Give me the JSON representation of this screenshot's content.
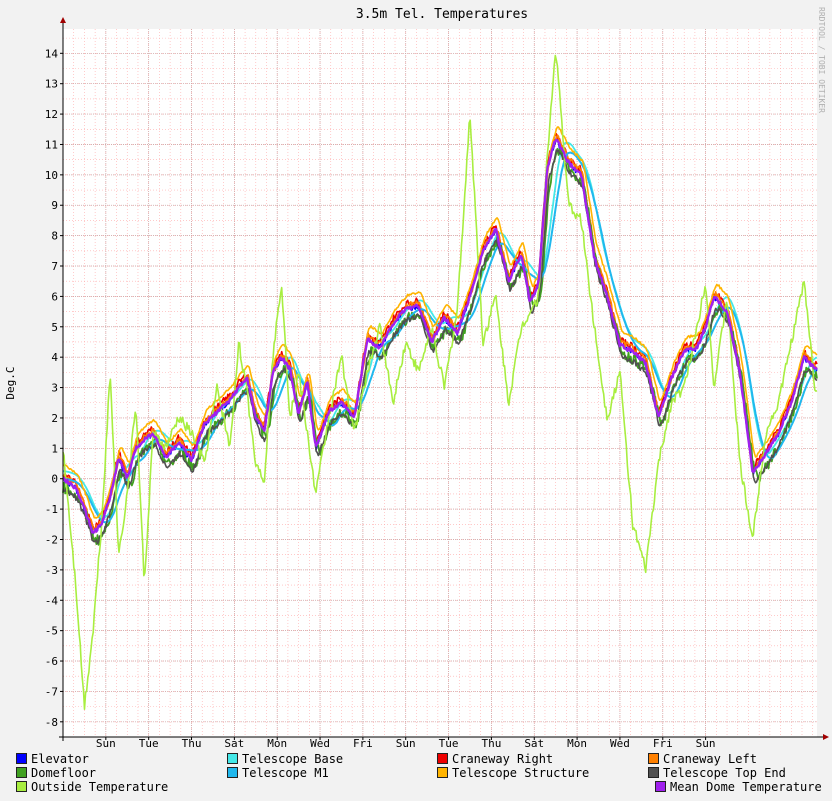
{
  "colors": {
    "background": "#f2f2f2",
    "plot_background": "#ffffff",
    "minor_grid": "#ffaaaa",
    "major_grid": "#c8a0a0",
    "frame": "#000000"
  },
  "chart_data": {
    "type": "line",
    "title": "3.5m Tel. Temperatures",
    "ylabel": "Deg.C",
    "watermark": "RRDTOOL / TOBI OETIKER",
    "ylim": [
      -8.5,
      14.8
    ],
    "y_ticks": [
      "-8",
      "-7",
      "-6",
      "-5",
      "-4",
      "-3",
      "-2",
      "-1",
      "0",
      "1",
      "2",
      "3",
      "4",
      "5",
      "6",
      "7",
      "8",
      "9",
      "10",
      "11",
      "12",
      "13",
      "14"
    ],
    "x_unit": "days since start of plot",
    "xlim": [
      0,
      17.6
    ],
    "x_ticks": [
      {
        "label": "Sun",
        "x": 1
      },
      {
        "label": "Tue",
        "x": 2
      },
      {
        "label": "Thu",
        "x": 3
      },
      {
        "label": "Sat",
        "x": 4
      },
      {
        "label": "Mon",
        "x": 5
      },
      {
        "label": "Wed",
        "x": 6
      },
      {
        "label": "Fri",
        "x": 7
      },
      {
        "label": "Sun",
        "x": 8
      },
      {
        "label": "Tue",
        "x": 9
      },
      {
        "label": "Thu",
        "x": 10
      },
      {
        "label": "Sat",
        "x": 11
      },
      {
        "label": "Mon",
        "x": 12
      },
      {
        "label": "Wed",
        "x": 13
      },
      {
        "label": "Fri",
        "x": 14
      },
      {
        "label": "Sun",
        "x": 15
      }
    ],
    "base_x": [
      0,
      0.3,
      0.5,
      0.7,
      0.9,
      1.1,
      1.3,
      1.5,
      1.7,
      1.9,
      2.1,
      2.4,
      2.7,
      3.0,
      3.3,
      3.6,
      3.9,
      4.1,
      4.3,
      4.5,
      4.7,
      4.9,
      5.1,
      5.3,
      5.5,
      5.7,
      5.9,
      6.2,
      6.5,
      6.8,
      7.1,
      7.4,
      7.7,
      8.0,
      8.3,
      8.6,
      8.9,
      9.2,
      9.5,
      9.8,
      10.1,
      10.4,
      10.7,
      10.9,
      11.1,
      11.3,
      11.5,
      11.8,
      12.1,
      12.4,
      12.7,
      13.0,
      13.3,
      13.6,
      13.9,
      14.2,
      14.5,
      14.8,
      15.0,
      15.2,
      15.5,
      15.8,
      16.1,
      16.4,
      16.7,
      17.0,
      17.3,
      17.55
    ],
    "base_y": [
      0.0,
      -0.3,
      -1.0,
      -1.8,
      -1.5,
      -0.6,
      0.7,
      0.0,
      1.0,
      1.3,
      1.5,
      0.7,
      1.2,
      0.6,
      1.8,
      2.2,
      2.6,
      3.0,
      3.3,
      2.0,
      1.6,
      3.5,
      4.0,
      3.6,
      2.1,
      3.2,
      1.0,
      2.2,
      2.5,
      2.0,
      4.6,
      4.3,
      5.1,
      5.6,
      5.7,
      4.5,
      5.3,
      4.8,
      6.0,
      7.5,
      8.2,
      6.5,
      7.4,
      5.8,
      6.4,
      10.2,
      11.2,
      10.4,
      10.0,
      7.3,
      6.0,
      4.4,
      4.2,
      3.8,
      2.0,
      3.3,
      4.2,
      4.3,
      5.0,
      6.0,
      5.5,
      3.5,
      0.2,
      0.8,
      1.5,
      2.5,
      4.0,
      3.6
    ],
    "outside_y": [
      1.0,
      -3.5,
      -7.5,
      -5.0,
      -1.5,
      3.5,
      -2.5,
      -0.5,
      2.5,
      -3.5,
      1.5,
      1.0,
      2.0,
      1.5,
      0.5,
      3.0,
      1.0,
      4.5,
      2.8,
      0.5,
      0.0,
      4.0,
      6.5,
      2.0,
      3.5,
      1.5,
      -0.5,
      2.0,
      4.0,
      1.5,
      3.5,
      5.0,
      2.5,
      4.5,
      3.5,
      5.0,
      3.0,
      5.5,
      12.0,
      4.5,
      6.0,
      2.5,
      5.0,
      5.5,
      6.0,
      10.5,
      14.2,
      9.0,
      8.5,
      5.0,
      2.0,
      3.5,
      -1.5,
      -3.0,
      0.5,
      2.5,
      3.0,
      5.0,
      6.5,
      3.0,
      6.0,
      0.5,
      -2.0,
      1.5,
      2.5,
      4.5,
      6.5,
      3.0
    ],
    "series": [
      {
        "name": "Elevator",
        "color": "#0000ff",
        "offset": 0.0,
        "lag": 0.0,
        "jitter": 0.1,
        "width": 1.6
      },
      {
        "name": "Telescope Base",
        "color": "#44e8e8",
        "offset": 0.25,
        "lag": 0.45,
        "jitter": 0.0,
        "width": 1.8
      },
      {
        "name": "Craneway Right",
        "color": "#ee0000",
        "offset": 0.15,
        "lag": 0.0,
        "jitter": 0.12,
        "width": 1.6
      },
      {
        "name": "Craneway Left",
        "color": "#ff8000",
        "offset": 0.1,
        "lag": 0.05,
        "jitter": 0.1,
        "width": 1.6
      },
      {
        "name": "Domefloor",
        "color": "#40a020",
        "offset": -0.3,
        "lag": 0.15,
        "jitter": 0.18,
        "width": 1.8
      },
      {
        "name": "Telescope M1",
        "color": "#20b8ee",
        "offset": 0.0,
        "lag": 0.55,
        "jitter": 0.0,
        "width": 2.0
      },
      {
        "name": "Telescope Structure",
        "color": "#ffb400",
        "offset": 0.45,
        "lag": 0.1,
        "jitter": 0.04,
        "width": 1.6
      },
      {
        "name": "Telescope Top End",
        "color": "#505050",
        "offset": -0.35,
        "lag": 0.08,
        "jitter": 0.1,
        "width": 1.6
      },
      {
        "name": "Outside Temperature",
        "color": "#a8ee40",
        "outside": true,
        "width": 1.6
      },
      {
        "name": "Mean Dome Temperature",
        "color": "#a020ee",
        "offset": 0.0,
        "lag": 0.0,
        "jitter": 0.06,
        "width": 2.4
      }
    ]
  }
}
